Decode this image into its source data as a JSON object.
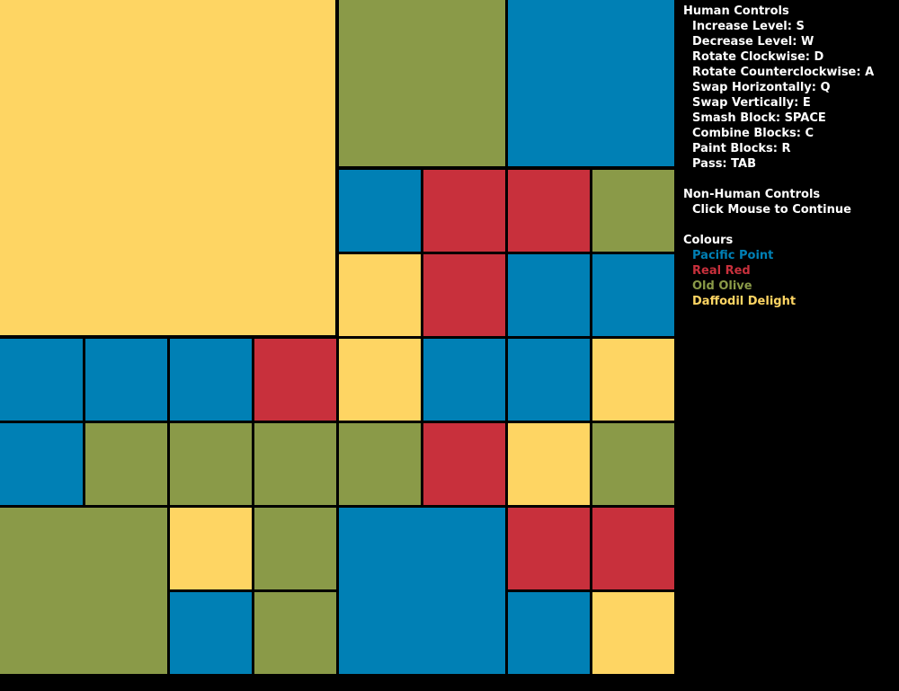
{
  "palette": {
    "pacific_point": "#0080B5",
    "real_red": "#C8303C",
    "old_olive": "#8A9A48",
    "daffodil_delight": "#FED563",
    "background": "#000000"
  },
  "board": {
    "blocks": [
      {
        "colour": "daffodil_delight"
      },
      {
        "colour": "old_olive"
      },
      {
        "colour": "pacific_point"
      },
      {
        "colour": "pacific_point"
      },
      {
        "colour": "real_red"
      },
      {
        "colour": "real_red"
      },
      {
        "colour": "old_olive"
      },
      {
        "colour": "daffodil_delight"
      },
      {
        "colour": "real_red"
      },
      {
        "colour": "pacific_point"
      },
      {
        "colour": "pacific_point"
      },
      {
        "colour": "pacific_point"
      },
      {
        "colour": "pacific_point"
      },
      {
        "colour": "pacific_point"
      },
      {
        "colour": "real_red"
      },
      {
        "colour": "daffodil_delight"
      },
      {
        "colour": "pacific_point"
      },
      {
        "colour": "pacific_point"
      },
      {
        "colour": "daffodil_delight"
      },
      {
        "colour": "pacific_point"
      },
      {
        "colour": "old_olive"
      },
      {
        "colour": "old_olive"
      },
      {
        "colour": "old_olive"
      },
      {
        "colour": "old_olive"
      },
      {
        "colour": "real_red"
      },
      {
        "colour": "daffodil_delight"
      },
      {
        "colour": "old_olive"
      },
      {
        "colour": "old_olive"
      },
      {
        "colour": "daffodil_delight"
      },
      {
        "colour": "old_olive"
      },
      {
        "colour": "pacific_point"
      },
      {
        "colour": "old_olive"
      },
      {
        "colour": "pacific_point"
      },
      {
        "colour": "real_red"
      },
      {
        "colour": "real_red"
      },
      {
        "colour": "pacific_point"
      },
      {
        "colour": "daffodil_delight"
      }
    ]
  },
  "legend": {
    "human_controls": {
      "title": "Human Controls",
      "items": [
        "Increase Level: S",
        "Decrease Level: W",
        "Rotate Clockwise: D",
        "Rotate Counterclockwise: A",
        "Swap Horizontally: Q",
        "Swap Vertically: E",
        "Smash Block: SPACE",
        "Combine Blocks: C",
        "Paint Blocks: R",
        "Pass: TAB"
      ]
    },
    "non_human_controls": {
      "title": "Non-Human Controls",
      "items": [
        "Click Mouse to Continue"
      ]
    },
    "colours": {
      "title": "Colours",
      "items": [
        {
          "label": "Pacific Point",
          "colour": "#0080B5"
        },
        {
          "label": "Real Red",
          "colour": "#C8303C"
        },
        {
          "label": "Old Olive",
          "colour": "#8A9A48"
        },
        {
          "label": "Daffodil Delight",
          "colour": "#FED563"
        }
      ]
    }
  }
}
